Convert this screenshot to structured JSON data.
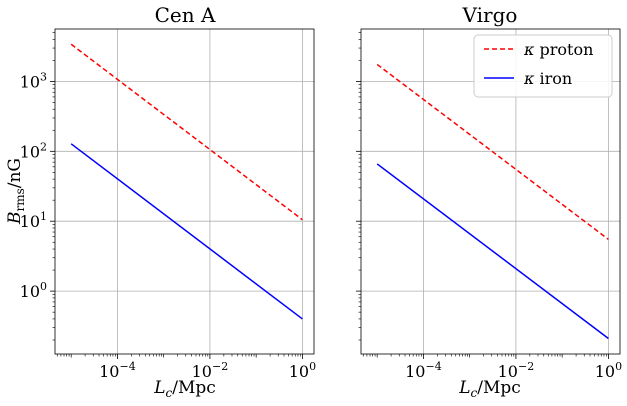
{
  "chart_data": [
    {
      "type": "line",
      "title": "Cen A",
      "xlabel": "L_c/Mpc",
      "ylabel": "B_rms/nG",
      "xscale": "log",
      "yscale": "log",
      "xlim": [
        4.47e-06,
        1.78
      ],
      "ylim": [
        0.126,
        5620
      ],
      "grid": true,
      "x_ticks": [
        {
          "value": 0.0001,
          "base": "10",
          "exp": "−4"
        },
        {
          "value": 0.01,
          "base": "10",
          "exp": "−2"
        },
        {
          "value": 1,
          "base": "10",
          "exp": "0"
        }
      ],
      "y_ticks": [
        {
          "value": 1,
          "base": "10",
          "exp": "0"
        },
        {
          "value": 10,
          "base": "10",
          "exp": "1"
        },
        {
          "value": 100,
          "base": "10",
          "exp": "2"
        },
        {
          "value": 1000,
          "base": "10",
          "exp": "3"
        }
      ],
      "series": [
        {
          "name": "κ proton",
          "color": "#ff0000",
          "style": "dashed",
          "x": [
            1e-05,
            1
          ],
          "y": [
            3400,
            10.5
          ]
        },
        {
          "name": "κ iron",
          "color": "#0000ff",
          "style": "solid",
          "x": [
            1e-05,
            1
          ],
          "y": [
            128,
            0.4
          ]
        }
      ]
    },
    {
      "type": "line",
      "title": "Virgo",
      "xlabel": "L_c/Mpc",
      "ylabel": "",
      "xscale": "log",
      "yscale": "log",
      "xlim": [
        4.47e-06,
        1.78
      ],
      "ylim": [
        0.126,
        5620
      ],
      "grid": true,
      "legend": "top-right",
      "x_ticks": [
        {
          "value": 0.0001,
          "base": "10",
          "exp": "−4"
        },
        {
          "value": 0.01,
          "base": "10",
          "exp": "−2"
        },
        {
          "value": 1,
          "base": "10",
          "exp": "0"
        }
      ],
      "y_ticks": [],
      "series": [
        {
          "name": "κ proton",
          "color": "#ff0000",
          "style": "dashed",
          "x": [
            1e-05,
            1
          ],
          "y": [
            1750,
            5.5
          ]
        },
        {
          "name": "κ iron",
          "color": "#0000ff",
          "style": "solid",
          "x": [
            1e-05,
            1
          ],
          "y": [
            66,
            0.21
          ]
        }
      ]
    }
  ],
  "axis_labels": {
    "x_main": "L",
    "x_sub": "c",
    "x_unit": "/Mpc",
    "y_main": "B",
    "y_sub": "rms",
    "y_unit": "/nG"
  },
  "legend": [
    {
      "symbol": "κ",
      "label": "proton",
      "color": "#ff0000",
      "style": "dashed"
    },
    {
      "symbol": "κ",
      "label": "iron",
      "color": "#0000ff",
      "style": "solid"
    }
  ]
}
